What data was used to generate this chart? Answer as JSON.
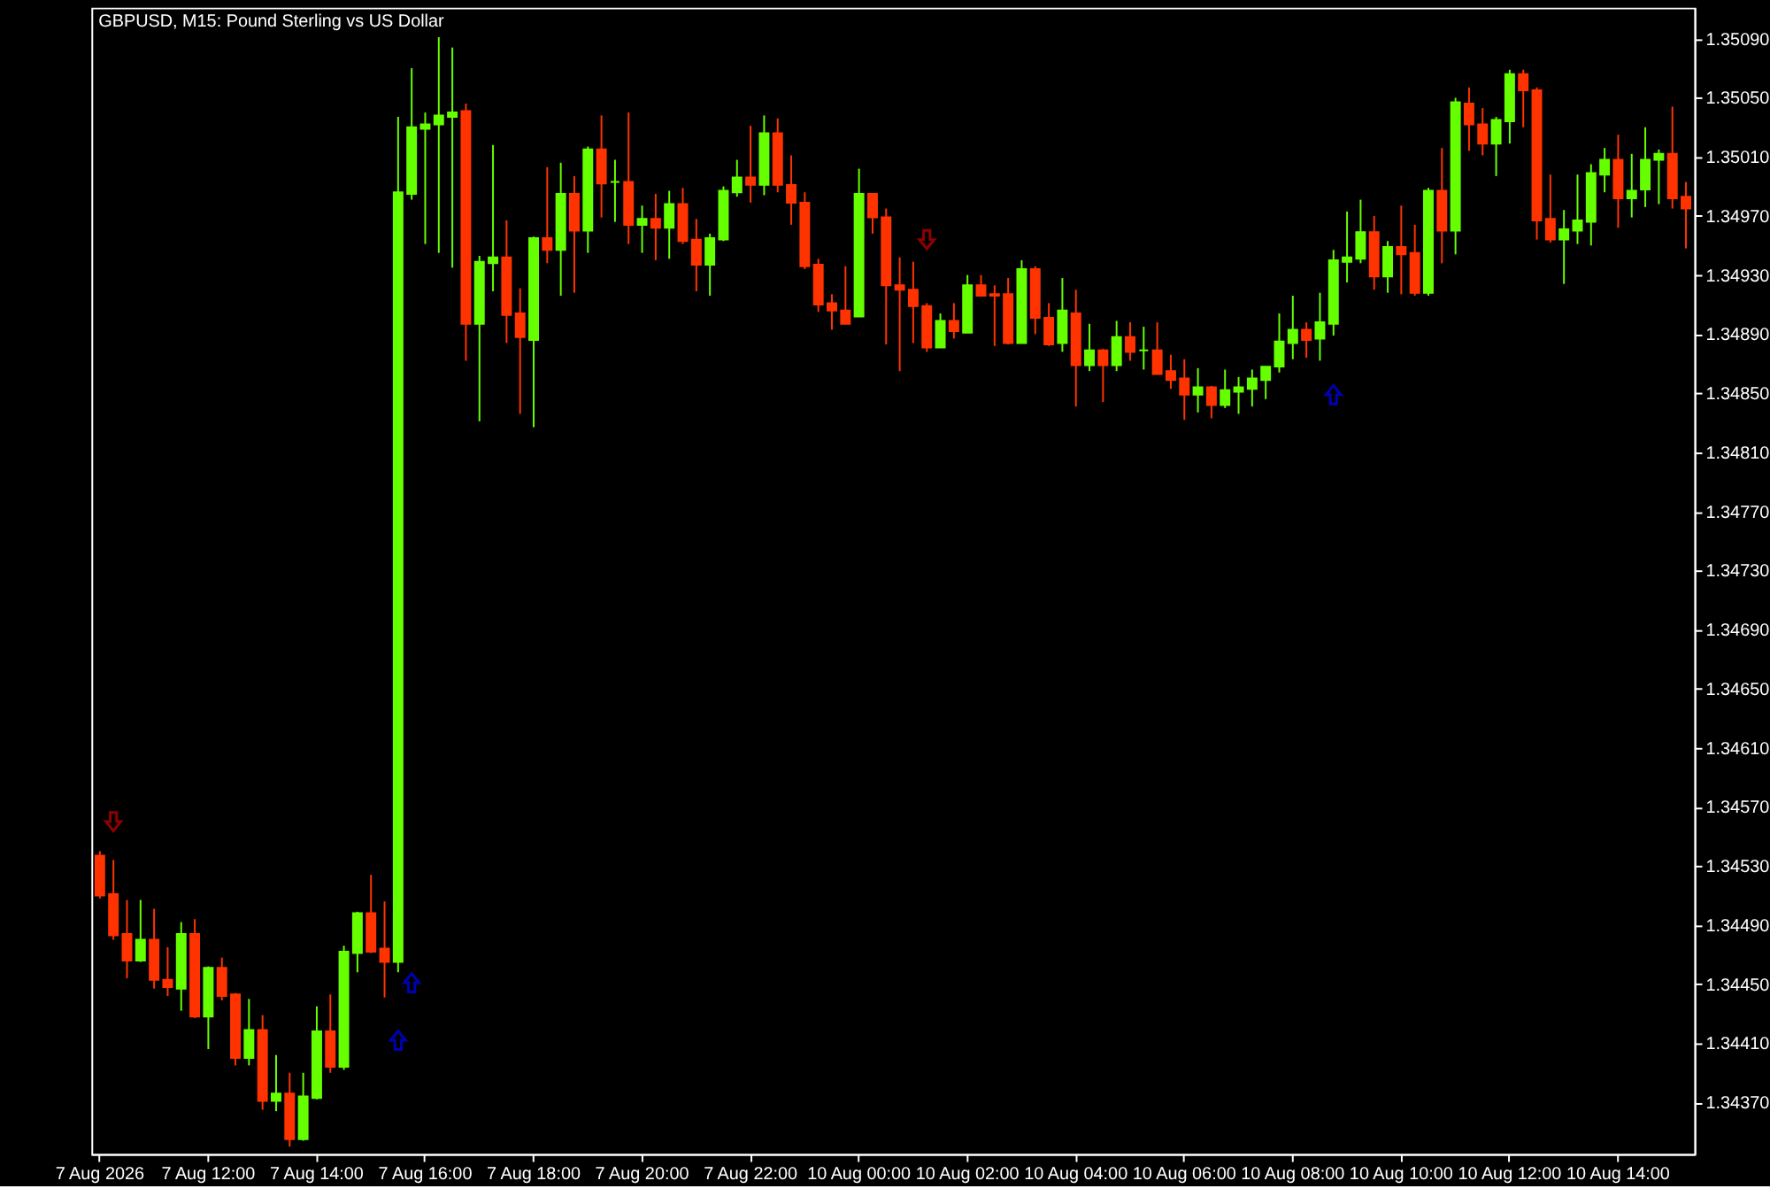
{
  "chart_data": {
    "type": "candlestick",
    "title": "GBPUSD, M15:  Pound Sterling vs US Dollar",
    "categories": [
      "7 Aug 2026",
      null,
      null,
      null,
      null,
      null,
      null,
      null,
      "7 Aug 12:00",
      null,
      null,
      null,
      null,
      null,
      null,
      null,
      "7 Aug 14:00",
      null,
      null,
      null,
      null,
      null,
      null,
      null,
      "7 Aug 16:00",
      null,
      null,
      null,
      null,
      null,
      null,
      null,
      "7 Aug 18:00",
      null,
      null,
      null,
      null,
      null,
      null,
      null,
      "7 Aug 20:00",
      null,
      null,
      null,
      null,
      null,
      null,
      null,
      "7 Aug 22:00",
      null,
      null,
      null,
      null,
      null,
      null,
      null,
      "10 Aug 00:00",
      null,
      null,
      null,
      null,
      null,
      null,
      null,
      "10 Aug 02:00",
      null,
      null,
      null,
      null,
      null,
      null,
      null,
      "10 Aug 04:00",
      null,
      null,
      null,
      null,
      null,
      null,
      null,
      "10 Aug 06:00",
      null,
      null,
      null,
      null,
      null,
      null,
      null,
      "10 Aug 08:00",
      null,
      null,
      null,
      null,
      null,
      null,
      null,
      "10 Aug 10:00",
      null,
      null,
      null,
      null,
      null,
      null,
      null,
      "10 Aug 12:00",
      null,
      null,
      null,
      null,
      null,
      null,
      null,
      "10 Aug 14:00",
      null,
      null,
      null,
      null,
      null
    ],
    "ohlc": [
      [
        1.34537,
        1.3454,
        1.34508,
        1.3451
      ],
      [
        1.34511,
        1.34534,
        1.3448,
        1.34483
      ],
      [
        1.34484,
        1.34507,
        1.34454,
        1.34466
      ],
      [
        1.34466,
        1.34507,
        1.34465,
        1.3448
      ],
      [
        1.3448,
        1.34501,
        1.34447,
        1.34453
      ],
      [
        1.34453,
        1.34475,
        1.34442,
        1.34448
      ],
      [
        1.34447,
        1.34492,
        1.34432,
        1.34484
      ],
      [
        1.34484,
        1.34494,
        1.34427,
        1.34428
      ],
      [
        1.34428,
        1.34462,
        1.34406,
        1.34461
      ],
      [
        1.34461,
        1.34468,
        1.34439,
        1.34442
      ],
      [
        1.34443,
        1.34444,
        1.34395,
        1.344
      ],
      [
        1.344,
        1.3444,
        1.34395,
        1.34419
      ],
      [
        1.34419,
        1.34429,
        1.34365,
        1.34371
      ],
      [
        1.34371,
        1.34402,
        1.34364,
        1.34376
      ],
      [
        1.34376,
        1.3439,
        1.3434,
        1.34345
      ],
      [
        1.34345,
        1.3439,
        1.34344,
        1.34374
      ],
      [
        1.34373,
        1.34435,
        1.34372,
        1.34418
      ],
      [
        1.34418,
        1.34443,
        1.3439,
        1.34394
      ],
      [
        1.34394,
        1.34476,
        1.34392,
        1.34472
      ],
      [
        1.34471,
        1.34499,
        1.34458,
        1.34498
      ],
      [
        1.34498,
        1.34524,
        1.34471,
        1.34472
      ],
      [
        1.34474,
        1.34506,
        1.34441,
        1.34465
      ],
      [
        1.34465,
        1.35037,
        1.34458,
        1.34986
      ],
      [
        1.34985,
        1.3507,
        1.34981,
        1.3503
      ],
      [
        1.35029,
        1.3504,
        1.34951,
        1.35032
      ],
      [
        1.35032,
        1.35091,
        1.34945,
        1.35038
      ],
      [
        1.35037,
        1.35084,
        1.34935,
        1.3504
      ],
      [
        1.35041,
        1.35046,
        1.34872,
        1.34897
      ],
      [
        1.34897,
        1.34943,
        1.34831,
        1.34939
      ],
      [
        1.34938,
        1.35018,
        1.34919,
        1.34942
      ],
      [
        1.34942,
        1.34967,
        1.34884,
        1.34903
      ],
      [
        1.34904,
        1.34921,
        1.34836,
        1.34888
      ],
      [
        1.34886,
        1.34956,
        1.34827,
        1.34955
      ],
      [
        1.34955,
        1.35003,
        1.34938,
        1.34947
      ],
      [
        1.34947,
        1.35006,
        1.34916,
        1.34985
      ],
      [
        1.34985,
        1.34997,
        1.34918,
        1.3496
      ],
      [
        1.3496,
        1.35017,
        1.34945,
        1.35015
      ],
      [
        1.35015,
        1.35038,
        1.34969,
        1.34992
      ],
      [
        1.34993,
        1.35008,
        1.34966,
        1.34993
      ],
      [
        1.34993,
        1.3504,
        1.34951,
        1.34964
      ],
      [
        1.34964,
        1.34977,
        1.34945,
        1.34968
      ],
      [
        1.34968,
        1.34985,
        1.3494,
        1.34962
      ],
      [
        1.34962,
        1.34987,
        1.34941,
        1.34978
      ],
      [
        1.34978,
        1.34989,
        1.34951,
        1.34953
      ],
      [
        1.34954,
        1.34968,
        1.34919,
        1.34937
      ],
      [
        1.34937,
        1.34958,
        1.34916,
        1.34955
      ],
      [
        1.34954,
        1.3499,
        1.34953,
        1.34987
      ],
      [
        1.34986,
        1.35008,
        1.34983,
        1.34996
      ],
      [
        1.34996,
        1.35031,
        1.34979,
        1.34991
      ],
      [
        1.34991,
        1.35038,
        1.34984,
        1.35026
      ],
      [
        1.35026,
        1.35036,
        1.34986,
        1.34991
      ],
      [
        1.34991,
        1.35011,
        1.34964,
        1.34979
      ],
      [
        1.34979,
        1.34986,
        1.34934,
        1.34936
      ],
      [
        1.34937,
        1.34941,
        1.34905,
        1.3491
      ],
      [
        1.34911,
        1.34917,
        1.34893,
        1.34906
      ],
      [
        1.34906,
        1.34936,
        1.34897,
        1.34897
      ],
      [
        1.34902,
        1.35002,
        1.34902,
        1.34985
      ],
      [
        1.34985,
        1.34985,
        1.34958,
        1.34969
      ],
      [
        1.34969,
        1.34975,
        1.34883,
        1.34923
      ],
      [
        1.34923,
        1.34942,
        1.34865,
        1.3492
      ],
      [
        1.3492,
        1.34939,
        1.34884,
        1.34909
      ],
      [
        1.34909,
        1.34911,
        1.34878,
        1.34881
      ],
      [
        1.34881,
        1.34904,
        1.34881,
        1.34899
      ],
      [
        1.34899,
        1.34911,
        1.34887,
        1.34892
      ],
      [
        1.34891,
        1.3493,
        1.34891,
        1.34923
      ],
      [
        1.34923,
        1.3493,
        1.34916,
        1.34916
      ],
      [
        1.34917,
        1.34923,
        1.34882,
        1.34916
      ],
      [
        1.34917,
        1.34928,
        1.34883,
        1.34884
      ],
      [
        1.34884,
        1.3494,
        1.34884,
        1.34934
      ],
      [
        1.34934,
        1.34936,
        1.3489,
        1.34901
      ],
      [
        1.34901,
        1.34911,
        1.34882,
        1.34883
      ],
      [
        1.34884,
        1.34928,
        1.34878,
        1.34906
      ],
      [
        1.34904,
        1.3492,
        1.34841,
        1.34869
      ],
      [
        1.34869,
        1.34897,
        1.34865,
        1.34879
      ],
      [
        1.34879,
        1.3488,
        1.34844,
        1.34869
      ],
      [
        1.34869,
        1.34899,
        1.34865,
        1.34888
      ],
      [
        1.34888,
        1.34898,
        1.34872,
        1.34878
      ],
      [
        1.34879,
        1.34895,
        1.34866,
        1.34879
      ],
      [
        1.34879,
        1.34898,
        1.34863,
        1.34863
      ],
      [
        1.34865,
        1.34876,
        1.34853,
        1.34859
      ],
      [
        1.3486,
        1.34873,
        1.34832,
        1.34849
      ],
      [
        1.34849,
        1.34867,
        1.34837,
        1.34854
      ],
      [
        1.34854,
        1.34855,
        1.34833,
        1.34842
      ],
      [
        1.34842,
        1.34866,
        1.3484,
        1.34852
      ],
      [
        1.34851,
        1.34861,
        1.34836,
        1.34854
      ],
      [
        1.34853,
        1.34866,
        1.34841,
        1.3486
      ],
      [
        1.34859,
        1.34868,
        1.34846,
        1.34868
      ],
      [
        1.34868,
        1.34904,
        1.34864,
        1.34885
      ],
      [
        1.34884,
        1.34916,
        1.34873,
        1.34893
      ],
      [
        1.34893,
        1.34898,
        1.34874,
        1.34886
      ],
      [
        1.34887,
        1.34918,
        1.34872,
        1.34898
      ],
      [
        1.34897,
        1.34947,
        1.34889,
        1.3494
      ],
      [
        1.34939,
        1.34973,
        1.34925,
        1.34942
      ],
      [
        1.34941,
        1.34981,
        1.34938,
        1.34959
      ],
      [
        1.34959,
        1.3497,
        1.3492,
        1.34929
      ],
      [
        1.34929,
        1.34953,
        1.34918,
        1.34949
      ],
      [
        1.34949,
        1.34977,
        1.34917,
        1.34944
      ],
      [
        1.34945,
        1.34964,
        1.34916,
        1.34918
      ],
      [
        1.34918,
        1.34989,
        1.34916,
        1.34987
      ],
      [
        1.34987,
        1.35016,
        1.34938,
        1.3496
      ],
      [
        1.3496,
        1.3505,
        1.34944,
        1.35047
      ],
      [
        1.35046,
        1.35057,
        1.35014,
        1.35032
      ],
      [
        1.35032,
        1.35043,
        1.35011,
        1.35019
      ],
      [
        1.35019,
        1.35037,
        1.34997,
        1.35035
      ],
      [
        1.35034,
        1.35069,
        1.35019,
        1.35066
      ],
      [
        1.35066,
        1.35069,
        1.3503,
        1.35055
      ],
      [
        1.35055,
        1.35057,
        1.34954,
        1.34967
      ],
      [
        1.34968,
        1.34998,
        1.34952,
        1.34954
      ],
      [
        1.34954,
        1.34974,
        1.34924,
        1.34961
      ],
      [
        1.3496,
        1.34998,
        1.34951,
        1.34967
      ],
      [
        1.34966,
        1.35005,
        1.3495,
        1.34999
      ],
      [
        1.34998,
        1.35016,
        1.34986,
        1.35008
      ],
      [
        1.35008,
        1.35025,
        1.34962,
        1.34982
      ],
      [
        1.34982,
        1.35012,
        1.34969,
        1.34987
      ],
      [
        1.34988,
        1.3503,
        1.34976,
        1.35008
      ],
      [
        1.35008,
        1.35015,
        1.34978,
        1.35012
      ],
      [
        1.35012,
        1.35044,
        1.34975,
        1.34982
      ],
      [
        1.34983,
        1.34993,
        1.34948,
        1.34975
      ]
    ],
    "colors": [
      "#ff3300",
      "#ff3300",
      "#ff3300",
      "#66ff00",
      "#ff3300",
      "#ff3300",
      "#66ff00",
      "#ff3300",
      "#66ff00",
      "#ff3300",
      "#ff3300",
      "#66ff00",
      "#ff3300",
      "#66ff00",
      "#ff3300",
      "#66ff00",
      "#66ff00",
      "#ff3300",
      "#66ff00",
      "#66ff00",
      "#ff3300",
      "#ff3300",
      "#66ff00",
      "#66ff00",
      "#66ff00",
      "#66ff00",
      "#66ff00",
      "#ff3300",
      "#66ff00",
      "#66ff00",
      "#ff3300",
      "#ff3300",
      "#66ff00",
      "#ff3300",
      "#66ff00",
      "#ff3300",
      "#66ff00",
      "#ff3300",
      "#66ff00",
      "#ff3300",
      "#66ff00",
      "#ff3300",
      "#66ff00",
      "#ff3300",
      "#ff3300",
      "#66ff00",
      "#66ff00",
      "#66ff00",
      "#ff3300",
      "#66ff00",
      "#ff3300",
      "#ff3300",
      "#ff3300",
      "#ff3300",
      "#ff3300",
      "#ff3300",
      "#66ff00",
      "#ff3300",
      "#ff3300",
      "#ff3300",
      "#ff3300",
      "#ff3300",
      "#66ff00",
      "#ff3300",
      "#66ff00",
      "#ff3300",
      "#ff3300",
      "#ff3300",
      "#66ff00",
      "#ff3300",
      "#ff3300",
      "#66ff00",
      "#ff3300",
      "#66ff00",
      "#ff3300",
      "#66ff00",
      "#ff3300",
      "#66ff00",
      "#ff3300",
      "#ff3300",
      "#ff3300",
      "#66ff00",
      "#ff3300",
      "#66ff00",
      "#66ff00",
      "#66ff00",
      "#66ff00",
      "#66ff00",
      "#66ff00",
      "#ff3300",
      "#66ff00",
      "#66ff00",
      "#66ff00",
      "#66ff00",
      "#ff3300",
      "#66ff00",
      "#ff3300",
      "#ff3300",
      "#66ff00",
      "#ff3300",
      "#66ff00",
      "#ff3300",
      "#ff3300",
      "#66ff00",
      "#66ff00",
      "#ff3300",
      "#ff3300",
      "#ff3300",
      "#66ff00",
      "#66ff00",
      "#66ff00",
      "#66ff00",
      "#ff3300",
      "#66ff00",
      "#66ff00",
      "#66ff00",
      "#ff3300",
      "#ff3300"
    ],
    "series": [
      {
        "type": "scatter",
        "color": "#0000ff",
        "marker": "triangle",
        "values": [
          null,
          null,
          null,
          null,
          null,
          null,
          null,
          null,
          null,
          null,
          null,
          null,
          null,
          null,
          null,
          null,
          null,
          null,
          null,
          null,
          null,
          null,
          1.34412,
          1.34451,
          null,
          null,
          null,
          null,
          null,
          null,
          null,
          null,
          null,
          null,
          null,
          null,
          null,
          null,
          null,
          null,
          null,
          null,
          null,
          null,
          null,
          null,
          null,
          null,
          null,
          null,
          null,
          null,
          null,
          null,
          null,
          null,
          null,
          null,
          null,
          null,
          null,
          null,
          null,
          null,
          null,
          null,
          null,
          null,
          null,
          null,
          null,
          null,
          null,
          null,
          null,
          null,
          null,
          null,
          null,
          null,
          null,
          null,
          null,
          null,
          null,
          null,
          null,
          null,
          null,
          null,
          null,
          1.34849,
          null,
          null,
          null,
          null,
          null,
          null,
          null,
          null,
          null,
          null,
          null,
          null,
          null,
          null,
          null,
          null,
          null,
          null,
          null,
          null,
          null,
          null,
          null,
          null,
          null,
          null
        ]
      },
      {
        "type": "scatter",
        "color": "#cc0000",
        "marker": "triangle",
        "values": [
          null,
          1.3456,
          null,
          null,
          null,
          null,
          null,
          null,
          null,
          null,
          null,
          null,
          null,
          null,
          null,
          null,
          null,
          null,
          null,
          null,
          null,
          null,
          null,
          null,
          null,
          null,
          null,
          null,
          null,
          null,
          null,
          null,
          null,
          null,
          null,
          null,
          null,
          null,
          null,
          null,
          null,
          null,
          null,
          null,
          null,
          null,
          null,
          null,
          null,
          null,
          null,
          null,
          null,
          null,
          null,
          null,
          null,
          null,
          null,
          null,
          null,
          1.34954,
          null,
          null,
          null,
          null,
          null,
          null,
          null,
          null,
          null,
          null,
          null,
          null,
          null,
          null,
          null,
          null,
          null,
          null,
          null,
          null,
          null,
          null,
          null,
          null,
          null,
          null,
          null,
          null,
          null,
          null,
          null,
          null,
          null,
          null,
          null,
          null,
          null,
          null,
          null,
          null,
          null,
          null,
          null,
          null,
          null,
          null,
          null,
          null,
          null,
          null,
          null,
          null,
          null,
          null,
          null,
          null
        ]
      }
    ],
    "ylim": [
      1.34335,
      1.35111
    ],
    "yticks": [
      {
        "value": 1.3437,
        "label": "1.34370"
      },
      {
        "value": 1.3441,
        "label": "1.34410"
      },
      {
        "value": 1.3445,
        "label": "1.34450"
      },
      {
        "value": 1.3449,
        "label": "1.34490"
      },
      {
        "value": 1.3453,
        "label": "1.34530"
      },
      {
        "value": 1.3457,
        "label": "1.34570"
      },
      {
        "value": 1.3461,
        "label": "1.34610"
      },
      {
        "value": 1.3465,
        "label": "1.34650"
      },
      {
        "value": 1.3469,
        "label": "1.34690"
      },
      {
        "value": 1.3473,
        "label": "1.34730"
      },
      {
        "value": 1.3477,
        "label": "1.34770"
      },
      {
        "value": 1.3481,
        "label": "1.34810"
      },
      {
        "value": 1.3485,
        "label": "1.34850"
      },
      {
        "value": 1.3489,
        "label": "1.34890"
      },
      {
        "value": 1.3493,
        "label": "1.34930"
      },
      {
        "value": 1.3497,
        "label": "1.34970"
      },
      {
        "value": 1.3501,
        "label": "1.35010"
      },
      {
        "value": 1.3505,
        "label": "1.35050"
      },
      {
        "value": 1.3509,
        "label": "1.35090"
      }
    ]
  }
}
